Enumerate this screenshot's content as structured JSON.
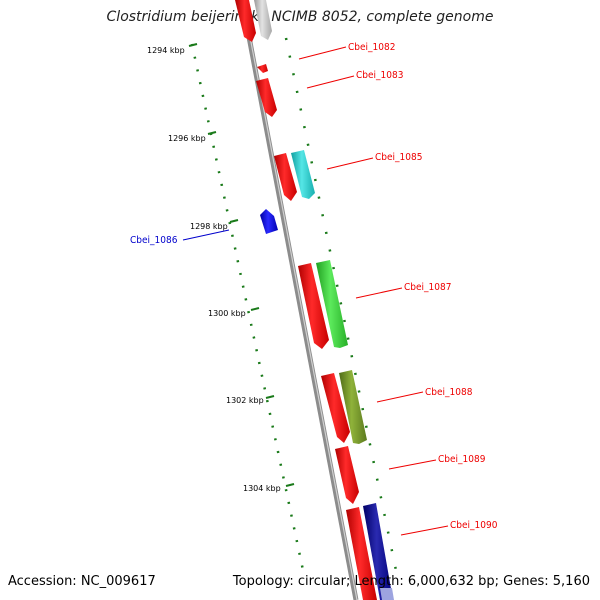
{
  "title": "Clostridium beijerinckii NCIMB 8052, complete genome",
  "footer": {
    "accession": "Accession: NC_009617",
    "stats": "Topology: circular; Length: 6,000,632 bp; Genes: 5,160"
  },
  "scale_ticks": [
    {
      "label": "1294 kbp"
    },
    {
      "label": "1296 kbp"
    },
    {
      "label": "1298 kbp"
    },
    {
      "label": "1300 kbp"
    },
    {
      "label": "1302 kbp"
    },
    {
      "label": "1304 kbp"
    }
  ],
  "genes": [
    {
      "id": "Cbei_1082",
      "color": "#ee0000"
    },
    {
      "id": "Cbei_1083",
      "color": "#ee0000"
    },
    {
      "id": "Cbei_1085",
      "color": "#ee0000"
    },
    {
      "id": "Cbei_1086",
      "color": "#0000cc"
    },
    {
      "id": "Cbei_1087",
      "color": "#ee0000"
    },
    {
      "id": "Cbei_1088",
      "color": "#ee0000"
    },
    {
      "id": "Cbei_1089",
      "color": "#ee0000"
    },
    {
      "id": "Cbei_1090",
      "color": "#ee0000"
    }
  ],
  "colors": {
    "backbone": "#8c8c8c",
    "tick": "#1a7a1a",
    "cds": "#ee0000",
    "cds_minus": "#0000cc",
    "cyan": "#22cccc",
    "green": "#33cc33",
    "olive": "#6b8e23",
    "navy": "#00008b",
    "gray": "#bbbbbb"
  }
}
